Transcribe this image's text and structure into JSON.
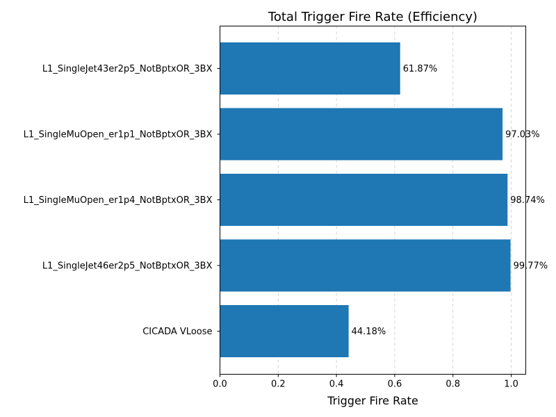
{
  "chart_data": {
    "type": "bar",
    "orientation": "horizontal",
    "title": "Total Trigger Fire Rate (Efficiency)",
    "xlabel": "Trigger Fire Rate",
    "ylabel": "",
    "xlim": [
      0,
      1.05
    ],
    "x_ticks": [
      "0.0",
      "0.2",
      "0.4",
      "0.6",
      "0.8",
      "1.0"
    ],
    "x_tick_values": [
      0,
      0.2,
      0.4,
      0.6,
      0.8,
      1.0
    ],
    "grid": "x-axis dashed",
    "bar_color": "#1f77b4",
    "categories": [
      "L1_SingleJet43er2p5_NotBptxOR_3BX",
      "L1_SingleMuOpen_er1p1_NotBptxOR_3BX",
      "L1_SingleMuOpen_er1p4_NotBptxOR_3BX",
      "L1_SingleJet46er2p5_NotBptxOR_3BX",
      "CICADA VLoose"
    ],
    "values": [
      0.6187,
      0.9703,
      0.9874,
      0.9977,
      0.4418
    ],
    "value_labels": [
      "61.87%",
      "97.03%",
      "98.74%",
      "99.77%",
      "44.18%"
    ]
  }
}
